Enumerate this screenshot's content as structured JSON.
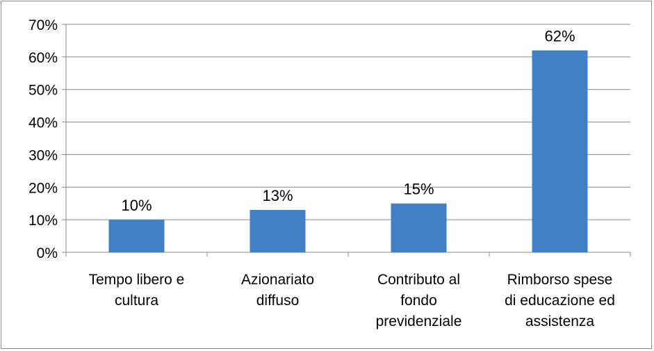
{
  "chart_data": {
    "type": "bar",
    "title": "",
    "xlabel": "",
    "ylabel": "",
    "categories": [
      [
        "Tempo libero e",
        "cultura"
      ],
      [
        "Azionariato",
        "diffuso"
      ],
      [
        "Contributo al",
        "fondo",
        "previdenziale"
      ],
      [
        "Rimborso spese",
        "di educazione ed",
        "assistenza"
      ]
    ],
    "values": [
      10,
      13,
      15,
      62
    ],
    "data_labels": [
      "10%",
      "13%",
      "15%",
      "62%"
    ],
    "ylim": [
      0,
      70
    ],
    "yticks": [
      0,
      10,
      20,
      30,
      40,
      50,
      60,
      70
    ],
    "ytick_labels": [
      "0%",
      "10%",
      "20%",
      "30%",
      "40%",
      "50%",
      "60%",
      "70%"
    ],
    "grid": true,
    "legend": "none",
    "colors": {
      "bar": "#4180c4",
      "grid": "#888888",
      "axis": "#888888"
    }
  }
}
